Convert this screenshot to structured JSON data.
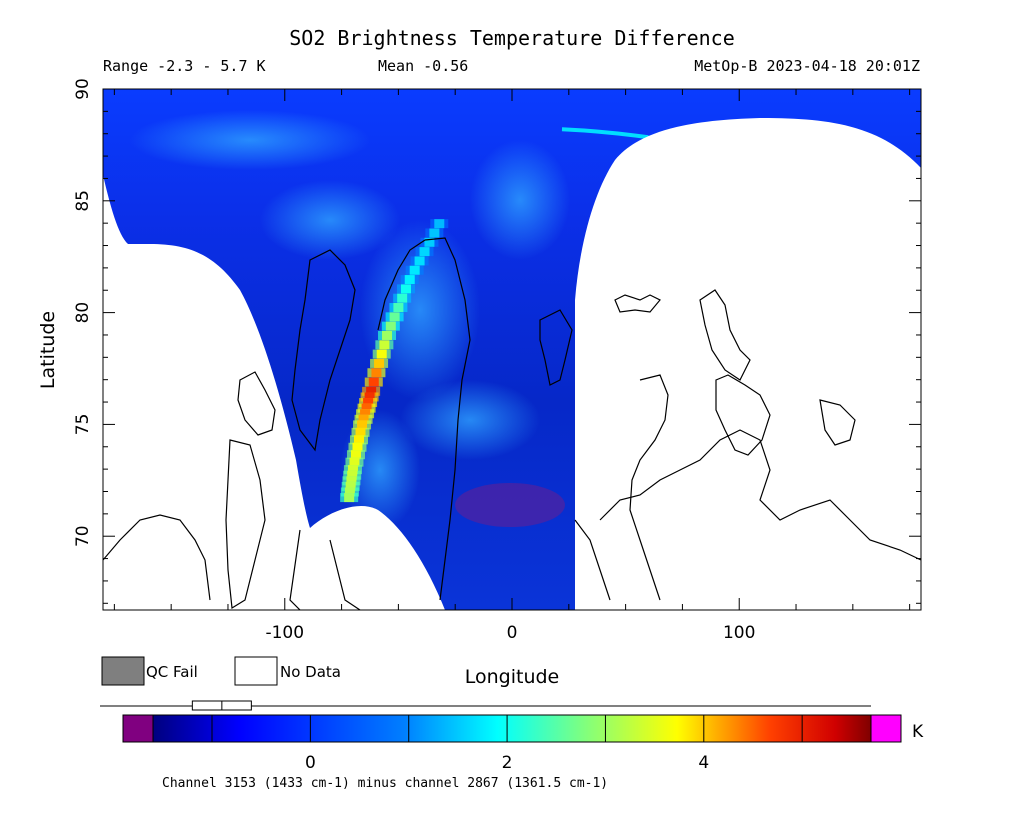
{
  "chart_data": {
    "type": "heatmap",
    "title": "SO2 Brightness Temperature Difference",
    "subtitle_range": "Range -2.3 - 5.7 K",
    "subtitle_mean": "Mean -0.56",
    "subtitle_source": "MetOp-B 2023-04-18 20:01Z",
    "xlabel": "Longitude",
    "ylabel": "Latitude",
    "xlim": [
      -180,
      180
    ],
    "ylim": [
      66.7,
      90
    ],
    "x_ticks": [
      -100,
      0,
      100
    ],
    "x_tick_labels": [
      "-100",
      "0",
      "100"
    ],
    "y_ticks": [
      70,
      75,
      80,
      85,
      90
    ],
    "y_tick_labels": [
      "70",
      "75",
      "80",
      "85",
      "90"
    ],
    "legend": {
      "qc_fail_label": "QC Fail",
      "no_data_label": "No Data",
      "qc_fail_color": "#7f7f7f",
      "no_data_color": "#ffffff"
    },
    "colorbar": {
      "min": -1.6,
      "max": 5.7,
      "ticks": [
        0,
        2,
        4
      ],
      "tick_labels": [
        "0",
        "2",
        "4"
      ],
      "unit": "K",
      "under_color": "#800080",
      "over_color": "#ff00ff",
      "caption": "Channel 3153 (1433 cm-1) minus channel 2867 (1361.5 cm-1)",
      "box_quartiles": [
        -1.2,
        -0.9,
        -0.6
      ],
      "whisker": [
        -2.3,
        5.7
      ]
    },
    "background_value": -1.0,
    "swath_enhancement": [
      {
        "lon": -32,
        "lat": 84.0,
        "value": 1.4
      },
      {
        "lon": -45,
        "lat": 81.5,
        "value": 1.8
      },
      {
        "lon": -55,
        "lat": 79.0,
        "value": 3.0
      },
      {
        "lon": -62,
        "lat": 76.5,
        "value": 5.0
      },
      {
        "lon": -66,
        "lat": 75.0,
        "value": 4.0
      },
      {
        "lon": -70,
        "lat": 73.0,
        "value": 3.4
      },
      {
        "lon": -72,
        "lat": 71.5,
        "value": 3.0
      }
    ],
    "arc_enhancement": {
      "lat": 88.2,
      "lon_from": 22,
      "lon_to": 60,
      "value": 1.8
    }
  }
}
